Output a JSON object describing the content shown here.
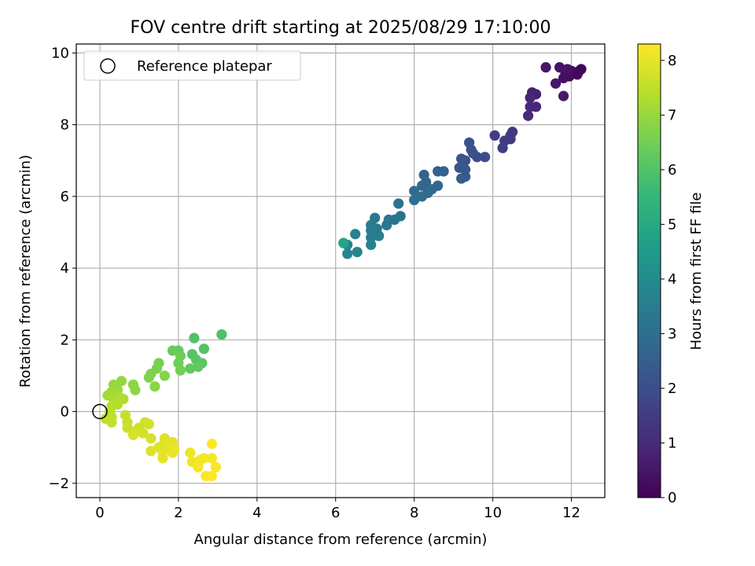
{
  "chart_data": {
    "type": "scatter",
    "title": "FOV centre drift starting at 2025/08/29 17:10:00",
    "xlabel": "Angular distance from reference (arcmin)",
    "ylabel": "Rotation from reference (arcmin)",
    "xlim": [
      -0.6,
      12.85
    ],
    "ylim": [
      -2.4,
      10.25
    ],
    "xticks": [
      0,
      2,
      4,
      6,
      8,
      10,
      12
    ],
    "yticks": [
      -2,
      0,
      2,
      4,
      6,
      8,
      10
    ],
    "grid": true,
    "legend": {
      "placement": "top-left",
      "entries": [
        {
          "label": "Reference platepar",
          "marker": "open-circle"
        }
      ]
    },
    "reference_point": {
      "x": 0,
      "y": 0
    },
    "colorbar": {
      "label": "Hours from first FF file",
      "colormap": "viridis",
      "range": [
        0,
        8.3
      ],
      "ticks": [
        0,
        1,
        2,
        3,
        4,
        5,
        6,
        7,
        8
      ],
      "stops": [
        "#440154",
        "#482878",
        "#3e4989",
        "#31688e",
        "#26828e",
        "#1f9e89",
        "#35b779",
        "#6ece58",
        "#b5de2b",
        "#fde725"
      ]
    },
    "points": [
      {
        "x": 12.2,
        "y": 9.5,
        "c": 0.05
      },
      {
        "x": 12.25,
        "y": 9.55,
        "c": 0.1
      },
      {
        "x": 12.15,
        "y": 9.4,
        "c": 0.15
      },
      {
        "x": 12.0,
        "y": 9.5,
        "c": 0.2
      },
      {
        "x": 11.95,
        "y": 9.35,
        "c": 0.25
      },
      {
        "x": 11.85,
        "y": 9.45,
        "c": 0.3
      },
      {
        "x": 11.8,
        "y": 9.3,
        "c": 0.35
      },
      {
        "x": 11.9,
        "y": 9.55,
        "c": 0.4
      },
      {
        "x": 11.7,
        "y": 9.6,
        "c": 0.45
      },
      {
        "x": 11.6,
        "y": 9.15,
        "c": 0.5
      },
      {
        "x": 11.35,
        "y": 9.6,
        "c": 0.55
      },
      {
        "x": 11.8,
        "y": 8.8,
        "c": 0.6
      },
      {
        "x": 11.1,
        "y": 8.85,
        "c": 0.75
      },
      {
        "x": 11.0,
        "y": 8.9,
        "c": 0.8
      },
      {
        "x": 10.95,
        "y": 8.75,
        "c": 0.85
      },
      {
        "x": 11.1,
        "y": 8.5,
        "c": 0.9
      },
      {
        "x": 10.95,
        "y": 8.5,
        "c": 0.95
      },
      {
        "x": 10.9,
        "y": 8.25,
        "c": 1.0
      },
      {
        "x": 10.5,
        "y": 7.8,
        "c": 1.3
      },
      {
        "x": 10.45,
        "y": 7.7,
        "c": 1.35
      },
      {
        "x": 10.45,
        "y": 7.6,
        "c": 1.4
      },
      {
        "x": 10.3,
        "y": 7.55,
        "c": 1.45
      },
      {
        "x": 10.05,
        "y": 7.7,
        "c": 1.5
      },
      {
        "x": 10.25,
        "y": 7.35,
        "c": 1.55
      },
      {
        "x": 9.8,
        "y": 7.1,
        "c": 1.9
      },
      {
        "x": 9.6,
        "y": 7.1,
        "c": 1.95
      },
      {
        "x": 9.5,
        "y": 7.2,
        "c": 2.0
      },
      {
        "x": 9.4,
        "y": 7.5,
        "c": 2.05
      },
      {
        "x": 9.45,
        "y": 7.3,
        "c": 2.1
      },
      {
        "x": 9.3,
        "y": 7.0,
        "c": 2.15
      },
      {
        "x": 9.2,
        "y": 7.05,
        "c": 2.2
      },
      {
        "x": 9.15,
        "y": 6.8,
        "c": 2.25
      },
      {
        "x": 9.3,
        "y": 6.75,
        "c": 2.3
      },
      {
        "x": 9.3,
        "y": 6.55,
        "c": 2.35
      },
      {
        "x": 9.2,
        "y": 6.5,
        "c": 2.4
      },
      {
        "x": 8.75,
        "y": 6.7,
        "c": 2.5
      },
      {
        "x": 8.6,
        "y": 6.7,
        "c": 2.55
      },
      {
        "x": 8.25,
        "y": 6.6,
        "c": 2.6
      },
      {
        "x": 8.3,
        "y": 6.4,
        "c": 2.65
      },
      {
        "x": 8.2,
        "y": 6.3,
        "c": 2.7
      },
      {
        "x": 8.6,
        "y": 6.3,
        "c": 2.75
      },
      {
        "x": 8.45,
        "y": 6.2,
        "c": 2.8
      },
      {
        "x": 8.35,
        "y": 6.1,
        "c": 2.85
      },
      {
        "x": 8.2,
        "y": 6.0,
        "c": 2.9
      },
      {
        "x": 8.0,
        "y": 6.15,
        "c": 2.95
      },
      {
        "x": 8.0,
        "y": 5.9,
        "c": 3.0
      },
      {
        "x": 7.65,
        "y": 5.45,
        "c": 3.1
      },
      {
        "x": 7.6,
        "y": 5.8,
        "c": 3.15
      },
      {
        "x": 7.5,
        "y": 5.35,
        "c": 3.2
      },
      {
        "x": 7.3,
        "y": 5.2,
        "c": 3.25
      },
      {
        "x": 7.35,
        "y": 5.35,
        "c": 3.3
      },
      {
        "x": 7.0,
        "y": 5.4,
        "c": 3.35
      },
      {
        "x": 7.05,
        "y": 5.1,
        "c": 3.4
      },
      {
        "x": 6.9,
        "y": 5.2,
        "c": 3.45
      },
      {
        "x": 6.9,
        "y": 5.05,
        "c": 3.5
      },
      {
        "x": 7.1,
        "y": 4.9,
        "c": 3.55
      },
      {
        "x": 6.9,
        "y": 4.85,
        "c": 3.6
      },
      {
        "x": 6.9,
        "y": 4.65,
        "c": 3.65
      },
      {
        "x": 6.5,
        "y": 4.95,
        "c": 3.7
      },
      {
        "x": 6.3,
        "y": 4.65,
        "c": 3.75
      },
      {
        "x": 6.3,
        "y": 4.4,
        "c": 3.8
      },
      {
        "x": 6.55,
        "y": 4.45,
        "c": 3.85
      },
      {
        "x": 6.2,
        "y": 4.7,
        "c": 4.8
      },
      {
        "x": 3.1,
        "y": 2.15,
        "c": 5.9
      },
      {
        "x": 2.4,
        "y": 2.05,
        "c": 5.95
      },
      {
        "x": 2.65,
        "y": 1.75,
        "c": 6.0
      },
      {
        "x": 2.35,
        "y": 1.6,
        "c": 6.05
      },
      {
        "x": 2.45,
        "y": 1.45,
        "c": 6.1
      },
      {
        "x": 2.6,
        "y": 1.35,
        "c": 6.15
      },
      {
        "x": 2.5,
        "y": 1.25,
        "c": 6.2
      },
      {
        "x": 2.3,
        "y": 1.2,
        "c": 6.25
      },
      {
        "x": 2.0,
        "y": 1.7,
        "c": 6.3
      },
      {
        "x": 1.85,
        "y": 1.7,
        "c": 6.35
      },
      {
        "x": 2.05,
        "y": 1.55,
        "c": 6.4
      },
      {
        "x": 2.0,
        "y": 1.35,
        "c": 6.45
      },
      {
        "x": 2.05,
        "y": 1.15,
        "c": 6.5
      },
      {
        "x": 1.5,
        "y": 1.35,
        "c": 6.55
      },
      {
        "x": 1.45,
        "y": 1.2,
        "c": 6.6
      },
      {
        "x": 1.3,
        "y": 1.05,
        "c": 6.65
      },
      {
        "x": 1.25,
        "y": 0.95,
        "c": 6.7
      },
      {
        "x": 1.65,
        "y": 1.0,
        "c": 6.75
      },
      {
        "x": 1.4,
        "y": 0.7,
        "c": 6.8
      },
      {
        "x": 0.85,
        "y": 0.75,
        "c": 6.85
      },
      {
        "x": 0.9,
        "y": 0.6,
        "c": 6.9
      },
      {
        "x": 0.55,
        "y": 0.85,
        "c": 6.95
      },
      {
        "x": 0.35,
        "y": 0.75,
        "c": 7.0
      },
      {
        "x": 0.45,
        "y": 0.6,
        "c": 7.05
      },
      {
        "x": 0.3,
        "y": 0.55,
        "c": 7.1
      },
      {
        "x": 0.2,
        "y": 0.45,
        "c": 7.15
      },
      {
        "x": 0.35,
        "y": 0.35,
        "c": 7.2
      },
      {
        "x": 0.5,
        "y": 0.4,
        "c": 7.25
      },
      {
        "x": 0.6,
        "y": 0.35,
        "c": 7.3
      },
      {
        "x": 0.3,
        "y": 0.15,
        "c": 7.35
      },
      {
        "x": 0.45,
        "y": 0.2,
        "c": 7.4
      },
      {
        "x": 0.25,
        "y": 0.0,
        "c": 7.45
      },
      {
        "x": 0.15,
        "y": -0.2,
        "c": 7.5
      },
      {
        "x": 0.3,
        "y": -0.15,
        "c": 7.5
      },
      {
        "x": 0.3,
        "y": -0.3,
        "c": 7.55
      },
      {
        "x": 0.65,
        "y": -0.1,
        "c": 7.6
      },
      {
        "x": 0.7,
        "y": -0.3,
        "c": 7.6
      },
      {
        "x": 0.7,
        "y": -0.45,
        "c": 7.65
      },
      {
        "x": 0.9,
        "y": -0.55,
        "c": 7.65
      },
      {
        "x": 1.0,
        "y": -0.45,
        "c": 7.7
      },
      {
        "x": 1.15,
        "y": -0.3,
        "c": 7.7
      },
      {
        "x": 1.25,
        "y": -0.35,
        "c": 7.75
      },
      {
        "x": 1.1,
        "y": -0.6,
        "c": 7.75
      },
      {
        "x": 0.85,
        "y": -0.65,
        "c": 7.8
      },
      {
        "x": 1.3,
        "y": -0.75,
        "c": 7.8
      },
      {
        "x": 1.3,
        "y": -1.1,
        "c": 7.85
      },
      {
        "x": 1.5,
        "y": -1.0,
        "c": 7.85
      },
      {
        "x": 1.65,
        "y": -0.85,
        "c": 7.9
      },
      {
        "x": 1.65,
        "y": -0.75,
        "c": 7.9
      },
      {
        "x": 1.85,
        "y": -0.85,
        "c": 7.95
      },
      {
        "x": 1.75,
        "y": -1.0,
        "c": 7.95
      },
      {
        "x": 1.6,
        "y": -1.15,
        "c": 8.0
      },
      {
        "x": 1.6,
        "y": -1.3,
        "c": 8.0
      },
      {
        "x": 1.85,
        "y": -1.15,
        "c": 8.05
      },
      {
        "x": 1.9,
        "y": -1.05,
        "c": 8.05
      },
      {
        "x": 2.3,
        "y": -1.15,
        "c": 8.1
      },
      {
        "x": 2.35,
        "y": -1.4,
        "c": 8.1
      },
      {
        "x": 2.55,
        "y": -1.35,
        "c": 8.15
      },
      {
        "x": 2.65,
        "y": -1.3,
        "c": 8.15
      },
      {
        "x": 2.5,
        "y": -1.55,
        "c": 8.2
      },
      {
        "x": 2.85,
        "y": -1.3,
        "c": 8.2
      },
      {
        "x": 2.95,
        "y": -1.55,
        "c": 8.25
      },
      {
        "x": 2.7,
        "y": -1.8,
        "c": 8.25
      },
      {
        "x": 2.85,
        "y": -1.8,
        "c": 8.3
      },
      {
        "x": 2.85,
        "y": -0.9,
        "c": 8.3
      }
    ]
  }
}
